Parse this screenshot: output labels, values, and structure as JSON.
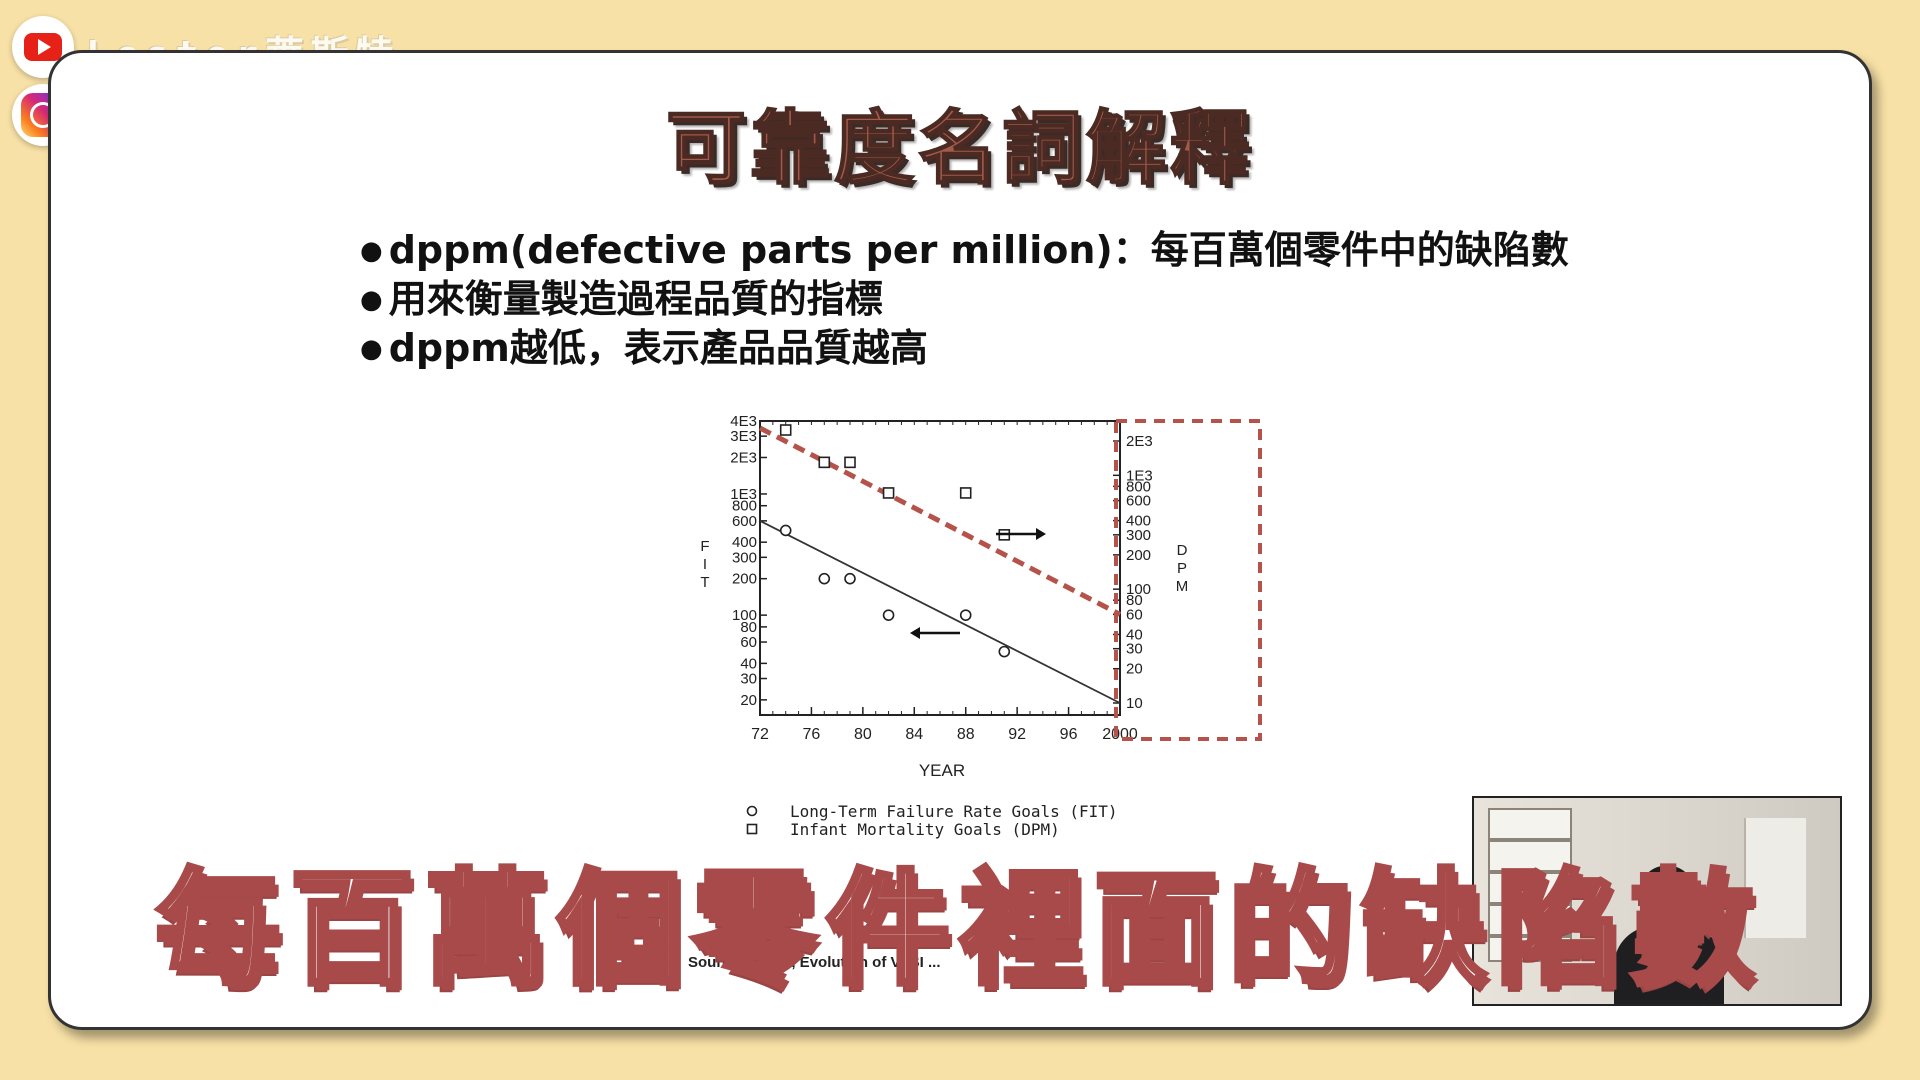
{
  "channel": {
    "name": "Lester萊斯特"
  },
  "slide": {
    "title": "可靠度名詞解釋",
    "bullets": [
      "dppm(defective parts per million)：每百萬個零件中的缺陷數",
      "用來衡量製造過程品質的指標",
      "dppm越低，表示產品品質越高"
    ]
  },
  "chart_data": {
    "type": "scatter",
    "xlabel": "YEAR",
    "x_ticks": [
      "72",
      "76",
      "80",
      "84",
      "88",
      "92",
      "96",
      "2000"
    ],
    "ylabel_left": "FIT",
    "ylabel_right": "DPM",
    "left_ticks": [
      "4E3",
      "3E3",
      "2E3",
      "1E3",
      "800",
      "600",
      "400",
      "300",
      "200",
      "100",
      "80",
      "60",
      "40",
      "30",
      "20"
    ],
    "right_ticks": [
      "2E3",
      "1E3",
      "800",
      "600",
      "400",
      "300",
      "200",
      "100",
      "80",
      "60",
      "40",
      "30",
      "20",
      "10"
    ],
    "left_scale": "log",
    "right_scale": "log",
    "xlim": [
      72,
      2000
    ],
    "series": [
      {
        "name": "Long-Term Failure Rate Goals (FIT)",
        "marker": "circle",
        "points": [
          [
            74,
            500
          ],
          [
            77,
            200
          ],
          [
            79,
            200
          ],
          [
            82,
            100
          ],
          [
            88,
            100
          ],
          [
            91,
            50
          ]
        ],
        "trend": [
          [
            72,
            600
          ],
          [
            2000,
            10
          ]
        ]
      },
      {
        "name": "Infant Mortality Goals (DPM)",
        "marker": "square",
        "points": [
          [
            74,
            2500
          ],
          [
            77,
            1300
          ],
          [
            79,
            1300
          ],
          [
            82,
            700
          ],
          [
            88,
            700
          ],
          [
            91,
            300
          ]
        ],
        "trend": [
          [
            72,
            3500
          ],
          [
            2000,
            60
          ]
        ]
      }
    ],
    "highlight_color": "#B5524A",
    "source": "Source: Crook, Evolution of VLSI ..."
  },
  "subtitle": "每百萬個零件裡面的缺陷數"
}
